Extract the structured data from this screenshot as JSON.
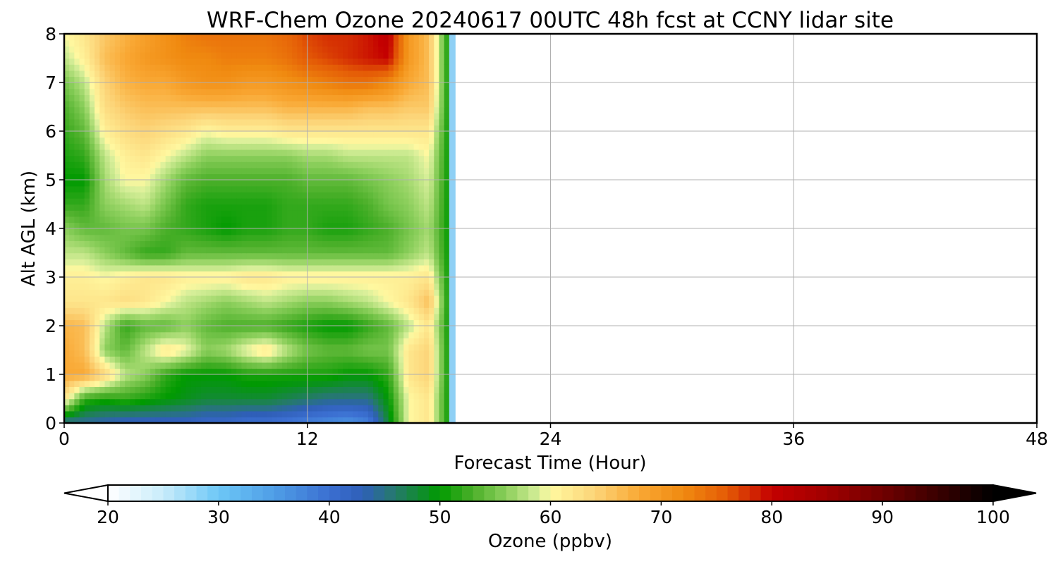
{
  "chart_data": {
    "type": "heatmap",
    "title": "WRF-Chem Ozone  20240617 00UTC 48h fcst at CCNY lidar site",
    "xlabel": "Forecast Time (Hour)",
    "ylabel": "Alt AGL (km)",
    "xlim": [
      0,
      48
    ],
    "ylim": [
      0,
      8
    ],
    "xticks": [
      0,
      12,
      24,
      36,
      48
    ],
    "yticks": [
      0,
      1,
      2,
      3,
      4,
      5,
      6,
      7,
      8
    ],
    "grid": true,
    "x": [
      0,
      1,
      2,
      3,
      4,
      5,
      6,
      7,
      8,
      9,
      10,
      11,
      12,
      13,
      14,
      15,
      16,
      17,
      18,
      19
    ],
    "y": [
      0,
      0.5,
      1,
      1.5,
      2,
      2.5,
      3,
      3.5,
      4,
      4.5,
      5,
      5.5,
      6,
      6.5,
      7,
      7.5,
      8
    ],
    "z": [
      [
        44,
        44,
        43,
        42,
        42,
        42,
        42,
        41,
        41,
        40,
        40,
        39,
        38,
        37,
        36,
        38,
        48,
        60,
        62,
        50
      ],
      [
        62,
        52,
        51,
        52,
        51,
        50,
        49,
        48,
        48,
        48,
        48,
        47,
        46,
        45,
        45,
        45,
        50,
        60,
        62,
        50
      ],
      [
        68,
        68,
        64,
        58,
        56,
        52,
        50,
        50,
        50,
        51,
        51,
        51,
        51,
        51,
        50,
        50,
        52,
        62,
        64,
        50
      ],
      [
        68,
        66,
        56,
        54,
        58,
        62,
        60,
        56,
        57,
        60,
        62,
        58,
        55,
        54,
        54,
        55,
        55,
        62,
        64,
        50
      ],
      [
        67,
        66,
        58,
        52,
        54,
        54,
        56,
        54,
        53,
        53,
        53,
        52,
        51,
        50,
        50,
        52,
        54,
        58,
        62,
        50
      ],
      [
        62,
        62,
        62,
        63,
        62,
        60,
        58,
        57,
        56,
        57,
        58,
        57,
        56,
        56,
        57,
        58,
        60,
        62,
        66,
        50
      ],
      [
        61,
        61,
        60,
        61,
        62,
        62,
        61,
        61,
        61,
        62,
        62,
        61,
        61,
        61,
        61,
        61,
        61,
        61,
        62,
        50
      ],
      [
        58,
        58,
        56,
        54,
        52,
        52,
        54,
        54,
        54,
        54,
        54,
        54,
        54,
        54,
        54,
        54,
        54,
        56,
        58,
        50
      ],
      [
        56,
        54,
        54,
        55,
        55,
        53,
        52,
        51,
        50,
        51,
        51,
        52,
        52,
        51,
        51,
        52,
        53,
        55,
        57,
        50
      ],
      [
        52,
        52,
        56,
        57,
        58,
        55,
        52,
        51,
        51,
        51,
        51,
        52,
        52,
        52,
        52,
        53,
        55,
        56,
        58,
        50
      ],
      [
        50,
        50,
        57,
        60,
        60,
        57,
        54,
        53,
        53,
        53,
        53,
        53,
        54,
        54,
        54,
        55,
        56,
        57,
        59,
        50
      ],
      [
        51,
        52,
        58,
        61,
        62,
        60,
        58,
        56,
        56,
        56,
        56,
        56,
        57,
        57,
        58,
        58,
        58,
        58,
        60,
        50
      ],
      [
        52,
        54,
        61,
        63,
        64,
        63,
        62,
        60,
        61,
        61,
        61,
        62,
        62,
        62,
        62,
        62,
        62,
        62,
        62,
        50
      ],
      [
        53,
        56,
        63,
        65,
        66,
        66,
        66,
        66,
        66,
        66,
        66,
        67,
        67,
        67,
        67,
        66,
        66,
        65,
        65,
        50
      ],
      [
        55,
        58,
        64,
        67,
        68,
        68,
        70,
        71,
        71,
        70,
        70,
        71,
        72,
        73,
        74,
        74,
        72,
        68,
        66,
        50
      ],
      [
        58,
        61,
        66,
        68,
        70,
        71,
        72,
        72,
        73,
        73,
        73,
        74,
        76,
        77,
        78,
        79,
        80,
        70,
        66,
        50
      ],
      [
        60,
        62,
        65,
        67,
        69,
        71,
        73,
        74,
        74,
        74,
        74,
        75,
        77,
        78,
        78,
        79,
        81,
        70,
        66,
        50
      ]
    ],
    "colorbar": {
      "label": "Ozone  (ppbv)",
      "min": 20,
      "max": 100,
      "ticks": [
        20,
        30,
        40,
        50,
        60,
        70,
        80,
        90,
        100
      ],
      "extend": "both",
      "stops": [
        {
          "v": 20,
          "c": "#ffffff"
        },
        {
          "v": 25,
          "c": "#c8ecfa"
        },
        {
          "v": 30,
          "c": "#6dc7f7"
        },
        {
          "v": 35,
          "c": "#4f9ee6"
        },
        {
          "v": 40,
          "c": "#3b6fd1"
        },
        {
          "v": 43,
          "c": "#2f5fb8"
        },
        {
          "v": 46,
          "c": "#257a6a"
        },
        {
          "v": 50,
          "c": "#009a00"
        },
        {
          "v": 53,
          "c": "#4cb02a"
        },
        {
          "v": 56,
          "c": "#8ccf5c"
        },
        {
          "v": 59,
          "c": "#d8ef9a"
        },
        {
          "v": 60,
          "c": "#fff8a0"
        },
        {
          "v": 64,
          "c": "#fcd478"
        },
        {
          "v": 68,
          "c": "#f9a834"
        },
        {
          "v": 72,
          "c": "#f08a10"
        },
        {
          "v": 76,
          "c": "#e45a06"
        },
        {
          "v": 80,
          "c": "#c40000"
        },
        {
          "v": 85,
          "c": "#a00000"
        },
        {
          "v": 90,
          "c": "#700000"
        },
        {
          "v": 95,
          "c": "#3a0000"
        },
        {
          "v": 100,
          "c": "#000000"
        }
      ]
    }
  }
}
